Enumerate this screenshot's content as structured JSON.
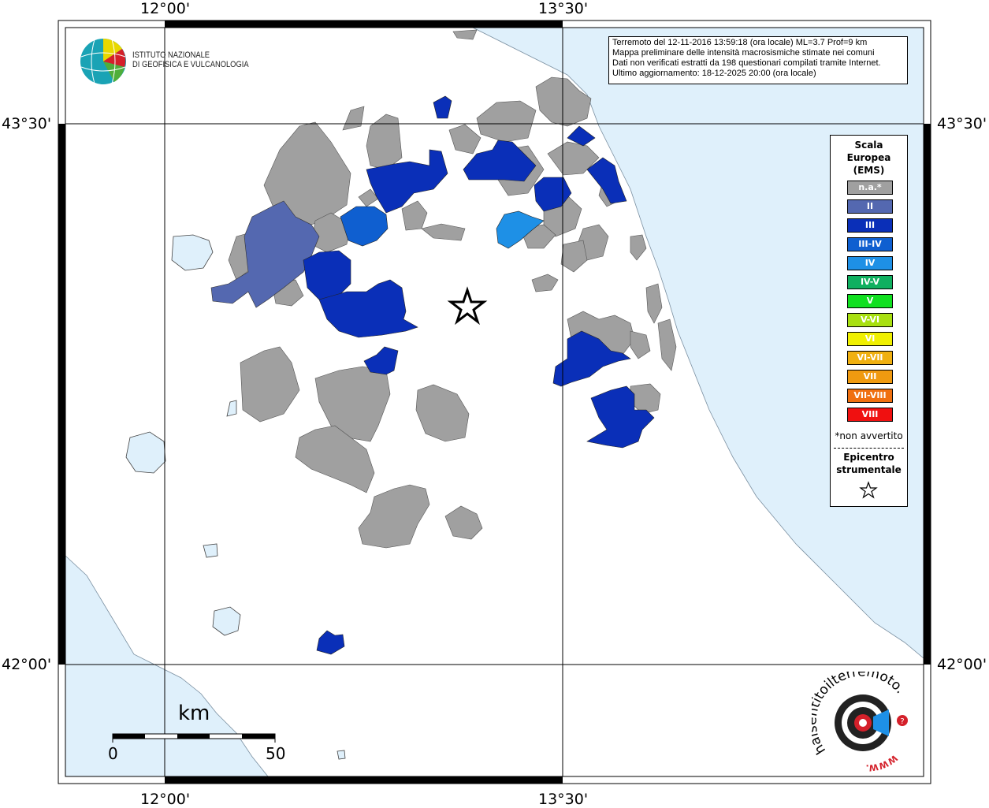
{
  "coords": {
    "top_left_lon": "12°00'",
    "top_right_lon": "13°30'",
    "bottom_left_lon": "12°00'",
    "bottom_right_lon": "13°30'",
    "left_top_lat": "43°30'",
    "left_bottom_lat": "42°00'",
    "right_top_lat": "43°30'",
    "right_bottom_lat": "42°00'"
  },
  "info": {
    "line1": "Terremoto del 12-11-2016 13:59:18 (ora locale) ML=3.7 Prof=9 km",
    "line2": "Mappa preliminare delle intensità macrosismiche stimate nei comuni",
    "line3": "Dati non verificati estratti da 198 questionari compilati tramite Internet.",
    "line4": "Ultimo aggiornamento: 18-12-2025 20:00 (ora locale)"
  },
  "logo": {
    "line1": "ISTITUTO NAZIONALE",
    "line2": "DI GEOFISICA E VULCANOLOGIA"
  },
  "legend": {
    "title1": "Scala",
    "title2": "Europea",
    "title3": "(EMS)",
    "items": [
      {
        "label": "n.a.*",
        "color": "#a0a0a0"
      },
      {
        "label": "II",
        "color": "#5468b0"
      },
      {
        "label": "III",
        "color": "#0a2fb8"
      },
      {
        "label": "III-IV",
        "color": "#0f5fd0"
      },
      {
        "label": "IV",
        "color": "#1e90e6"
      },
      {
        "label": "IV-V",
        "color": "#10b060"
      },
      {
        "label": "V",
        "color": "#10e020"
      },
      {
        "label": "V-VI",
        "color": "#a8e010"
      },
      {
        "label": "VI",
        "color": "#f0f000"
      },
      {
        "label": "VI-VII",
        "color": "#f0b010"
      },
      {
        "label": "VII",
        "color": "#f09a10"
      },
      {
        "label": "VII-VIII",
        "color": "#f07010"
      },
      {
        "label": "VIII",
        "color": "#f01010"
      }
    ],
    "note": "*non avvertito",
    "epi1": "Epicentro",
    "epi2": "strumentale"
  },
  "scalebar": {
    "unit": "km",
    "start": "0",
    "end": "50"
  },
  "badge": {
    "text": "haisentitoilterremoto.it",
    "www": "WWW."
  },
  "colors": {
    "sea": "#dff0fb",
    "na": "#a0a0a0",
    "ii": "#5468b0",
    "iii": "#0a2fb8",
    "iii_iv": "#0f5fd0",
    "iv": "#1e90e6"
  }
}
